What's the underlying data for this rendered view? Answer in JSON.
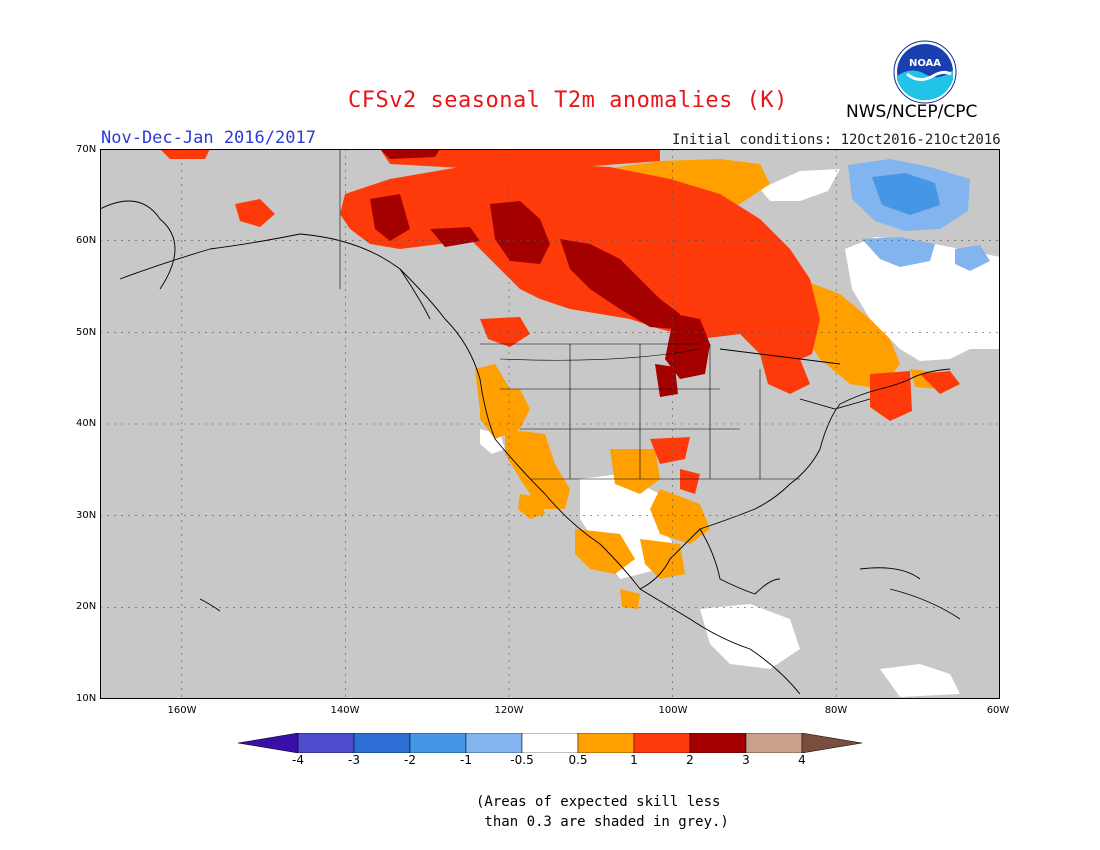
{
  "header": {
    "title": "CFSv2 seasonal T2m anomalies (K)",
    "period": "Nov-Dec-Jan 2016/2017",
    "initial_conditions": "Initial conditions: 12Oct2016-21Oct2016",
    "org": "NWS/NCEP/CPC",
    "logo_text": "NOAA"
  },
  "map": {
    "lat_labels": [
      "70N",
      "60N",
      "50N",
      "40N",
      "30N",
      "20N",
      "10N"
    ],
    "lon_labels": [
      "160W",
      "140W",
      "120W",
      "100W",
      "80W",
      "60W"
    ],
    "colors": {
      "land_skill_low": "#c8c8c8",
      "ocean": "#c8c8c8",
      "neutral": "#ffffff",
      "warm_05_1": "#ffa000",
      "warm_1_2": "#ff3a0a",
      "warm_2_3": "#a50000",
      "cool_m1_m05": "#82b4f0",
      "cool_m2_m1": "#4696e6"
    }
  },
  "colorbar": {
    "ticks": [
      "-4",
      "-3",
      "-2",
      "-1",
      "-0.5",
      "0.5",
      "1",
      "2",
      "3",
      "4"
    ],
    "colors": [
      "#3a0fa8",
      "#4c4ccc",
      "#2e6fd6",
      "#4696e6",
      "#82b4f0",
      "#ffffff",
      "#ffa000",
      "#ff3a0a",
      "#a50000",
      "#c8a08c",
      "#7a4e3e"
    ]
  },
  "note": {
    "line1": "(Areas of expected skill less",
    "line2": " than 0.3 are shaded in grey.)"
  }
}
